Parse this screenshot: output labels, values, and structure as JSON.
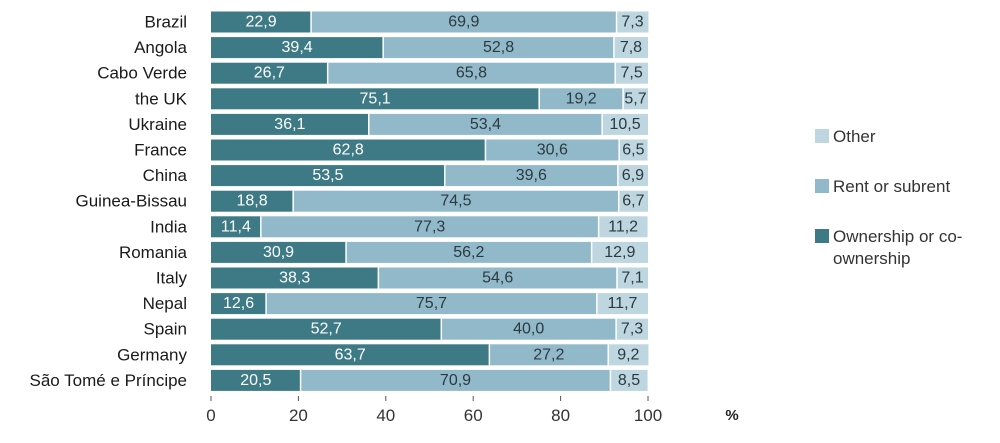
{
  "chart_data": {
    "type": "bar",
    "orientation": "horizontal",
    "stacked": true,
    "categories": [
      "Brazil",
      "Angola",
      "Cabo Verde",
      "the UK",
      "Ukraine",
      "France",
      "China",
      "Guinea-Bissau",
      "India",
      "Romania",
      "Italy",
      "Nepal",
      "Spain",
      "Germany",
      "São Tomé e Príncipe"
    ],
    "series": [
      {
        "name": "Ownership or co-ownership",
        "legend_lines": [
          "Ownership or co-",
          "ownership"
        ],
        "color": "#3d7a86",
        "label_color": "#ffffff",
        "values": [
          22.9,
          39.4,
          26.7,
          75.1,
          36.1,
          62.8,
          53.5,
          18.8,
          11.4,
          30.9,
          38.3,
          12.6,
          52.7,
          63.7,
          20.5
        ],
        "labels": [
          "22,9",
          "39,4",
          "26,7",
          "75,1",
          "36,1",
          "62,8",
          "53,5",
          "18,8",
          "11,4",
          "30,9",
          "38,3",
          "12,6",
          "52,7",
          "63,7",
          "20,5"
        ]
      },
      {
        "name": "Rent or subrent",
        "legend_lines": [
          "Rent or subrent"
        ],
        "color": "#92b9c9",
        "label_color": "#2b3a40",
        "values": [
          69.9,
          52.8,
          65.8,
          19.2,
          53.4,
          30.6,
          39.6,
          74.5,
          77.3,
          56.2,
          54.6,
          75.7,
          40.0,
          27.2,
          70.9
        ],
        "labels": [
          "69,9",
          "52,8",
          "65,8",
          "19,2",
          "53,4",
          "30,6",
          "39,6",
          "74,5",
          "77,3",
          "56,2",
          "54,6",
          "75,7",
          "40,0",
          "27,2",
          "70,9"
        ]
      },
      {
        "name": "Other",
        "legend_lines": [
          "Other"
        ],
        "color": "#bdd6df",
        "label_color": "#2b3a40",
        "values": [
          7.3,
          7.8,
          7.5,
          5.7,
          10.5,
          6.5,
          6.9,
          6.7,
          11.2,
          12.9,
          7.1,
          11.7,
          7.3,
          9.2,
          8.5
        ],
        "labels": [
          "7,3",
          "7,8",
          "7,5",
          "5,7",
          "10,5",
          "6,5",
          "6,9",
          "6,7",
          "11,2",
          "12,9",
          "7,1",
          "11,7",
          "7,3",
          "9,2",
          "8,5"
        ]
      }
    ],
    "x_ticks": [
      "0",
      "20",
      "40",
      "60",
      "80",
      "100"
    ],
    "xlim": [
      0,
      100
    ],
    "xlabel": "%",
    "ylabel": "",
    "title": "",
    "grid": false,
    "legend_position": "right",
    "legend_order": [
      "Other",
      "Rent or subrent",
      "Ownership or co-ownership"
    ]
  }
}
